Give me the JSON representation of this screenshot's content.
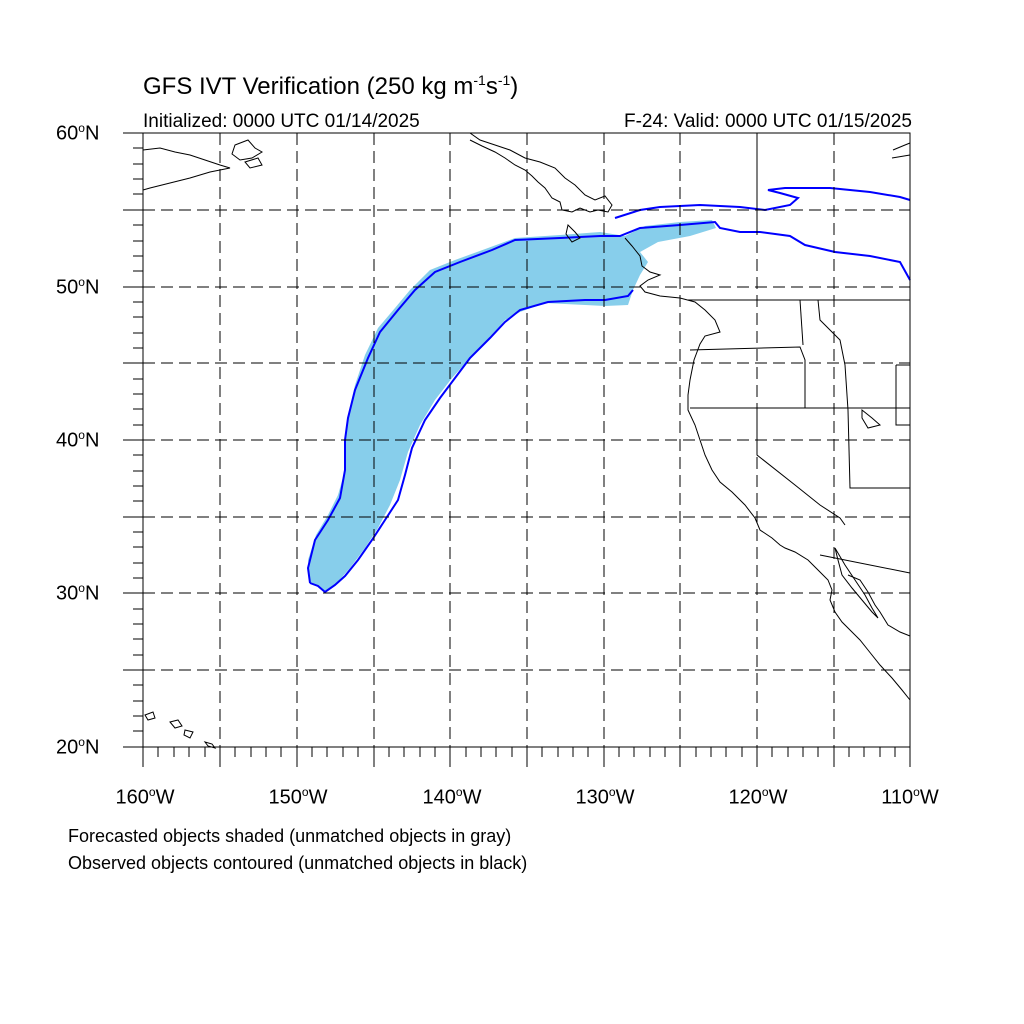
{
  "title": {
    "main": "GFS IVT Verification (250 kg m",
    "exp1": "-1",
    "mid": "s",
    "exp2": "-1",
    "close": ")"
  },
  "initialized": "Initialized: 0000 UTC 01/14/2025",
  "valid": "F-24: Valid: 0000 UTC 01/15/2025",
  "lat_labels": [
    {
      "deg": "60",
      "hemi": "N"
    },
    {
      "deg": "50",
      "hemi": "N"
    },
    {
      "deg": "40",
      "hemi": "N"
    },
    {
      "deg": "30",
      "hemi": "N"
    },
    {
      "deg": "20",
      "hemi": "N"
    }
  ],
  "lon_labels": [
    {
      "deg": "160",
      "hemi": "W"
    },
    {
      "deg": "150",
      "hemi": "W"
    },
    {
      "deg": "140",
      "hemi": "W"
    },
    {
      "deg": "130",
      "hemi": "W"
    },
    {
      "deg": "120",
      "hemi": "W"
    },
    {
      "deg": "110",
      "hemi": "W"
    }
  ],
  "notes": {
    "forecast": "Forecasted objects shaded (unmatched objects in gray)",
    "observed": "Observed objects contoured (unmatched objects in black)"
  },
  "map": {
    "lon_range": [
      -160,
      -110
    ],
    "lat_range": [
      20,
      60
    ],
    "grid_interval_deg": 5,
    "projection": "cylindrical equidistant"
  },
  "colors": {
    "forecast_fill": "#87ceeb",
    "observed_contour": "#0000ff",
    "coastline": "#000000",
    "grid": "#000000"
  }
}
